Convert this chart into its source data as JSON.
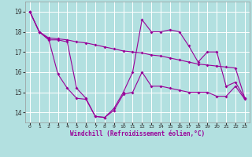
{
  "xlabel": "Windchill (Refroidissement éolien,°C)",
  "bg_color": "#b2e0e0",
  "grid_color": "#c8e8e8",
  "line_color": "#990099",
  "xlim": [
    -0.5,
    23.5
  ],
  "ylim": [
    13.5,
    19.5
  ],
  "yticks": [
    14,
    15,
    16,
    17,
    18,
    19
  ],
  "xticks": [
    0,
    1,
    2,
    3,
    4,
    5,
    6,
    7,
    8,
    9,
    10,
    11,
    12,
    13,
    14,
    15,
    16,
    17,
    18,
    19,
    20,
    21,
    22,
    23
  ],
  "series1_x": [
    0,
    1,
    2,
    3,
    4,
    5,
    6,
    7,
    8,
    9,
    10,
    11,
    12,
    13,
    14,
    15,
    16,
    17,
    18,
    19,
    20,
    21,
    22,
    23
  ],
  "series1_y": [
    19.0,
    18.0,
    17.6,
    17.6,
    17.5,
    15.2,
    14.7,
    13.8,
    13.75,
    14.2,
    15.0,
    16.0,
    18.6,
    18.0,
    18.0,
    18.1,
    18.0,
    17.3,
    16.5,
    17.0,
    17.0,
    15.3,
    15.5,
    14.7
  ],
  "series2_x": [
    0,
    1,
    2,
    3,
    4,
    5,
    6,
    7,
    8,
    9,
    10,
    11,
    12,
    13,
    14,
    15,
    16,
    17,
    18,
    19,
    20,
    21,
    22,
    23
  ],
  "series2_y": [
    19.0,
    18.0,
    17.7,
    17.65,
    17.6,
    17.5,
    17.45,
    17.35,
    17.25,
    17.15,
    17.05,
    17.0,
    16.95,
    16.85,
    16.8,
    16.7,
    16.6,
    16.5,
    16.4,
    16.35,
    16.3,
    16.25,
    16.2,
    14.7
  ],
  "series3_x": [
    0,
    1,
    2,
    3,
    4,
    5,
    6,
    7,
    8,
    9,
    10,
    11,
    12,
    13,
    14,
    15,
    16,
    17,
    18,
    19,
    20,
    21,
    22,
    23
  ],
  "series3_y": [
    19.0,
    18.0,
    17.65,
    15.9,
    15.2,
    14.7,
    14.65,
    13.8,
    13.75,
    14.1,
    14.9,
    15.0,
    16.0,
    15.3,
    15.3,
    15.2,
    15.1,
    15.0,
    15.0,
    15.0,
    14.8,
    14.8,
    15.3,
    14.65
  ]
}
